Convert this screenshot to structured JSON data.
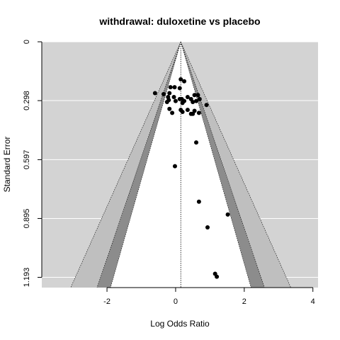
{
  "chart_data": {
    "type": "scatter",
    "title": "withdrawal: duloxetine vs placebo",
    "xlabel": "Log Odds Ratio",
    "ylabel": "Standard Error",
    "xlim": [
      -3.9,
      4.15
    ],
    "ylim": [
      0,
      1.245
    ],
    "y_reversed": true,
    "x_ticks": [
      -2,
      0,
      2,
      4
    ],
    "x_tick_labels": [
      "-2",
      "0",
      "2",
      "4"
    ],
    "y_ticks": [
      0,
      0.298,
      0.597,
      0.895,
      1.193
    ],
    "y_tick_labels": [
      "0",
      "0.298",
      "0.597",
      "0.895",
      "1.193"
    ],
    "grid": true,
    "pooled_estimate": 0.15,
    "funnel_z": [
      1.645,
      1.96,
      2.576
    ],
    "colors": {
      "panel_background": "#d3d3d3",
      "grid": "#ffffff",
      "region_outer": "#bfbfbf",
      "region_middle": "#8c8c8c",
      "region_inner": "#ffffff",
      "points": "#000000"
    },
    "points": [
      {
        "x": 0.15,
        "y": 0.19
      },
      {
        "x": 0.25,
        "y": 0.2
      },
      {
        "x": -0.15,
        "y": 0.23
      },
      {
        "x": -0.03,
        "y": 0.23
      },
      {
        "x": 0.12,
        "y": 0.235
      },
      {
        "x": -0.6,
        "y": 0.26
      },
      {
        "x": -0.35,
        "y": 0.265
      },
      {
        "x": -0.18,
        "y": 0.26
      },
      {
        "x": 0.55,
        "y": 0.27
      },
      {
        "x": 0.65,
        "y": 0.27
      },
      {
        "x": -0.22,
        "y": 0.28
      },
      {
        "x": -0.05,
        "y": 0.28
      },
      {
        "x": 0.35,
        "y": 0.28
      },
      {
        "x": 0.12,
        "y": 0.29
      },
      {
        "x": 0.18,
        "y": 0.29
      },
      {
        "x": 0.45,
        "y": 0.29
      },
      {
        "x": 0.7,
        "y": 0.29
      },
      {
        "x": -0.2,
        "y": 0.295
      },
      {
        "x": 0.0,
        "y": 0.3
      },
      {
        "x": 0.25,
        "y": 0.3
      },
      {
        "x": -0.25,
        "y": 0.305
      },
      {
        "x": 0.5,
        "y": 0.305
      },
      {
        "x": 0.6,
        "y": 0.3
      },
      {
        "x": 0.2,
        "y": 0.31
      },
      {
        "x": 0.9,
        "y": 0.32
      },
      {
        "x": -0.18,
        "y": 0.34
      },
      {
        "x": 0.15,
        "y": 0.345
      },
      {
        "x": 0.35,
        "y": 0.345
      },
      {
        "x": 0.2,
        "y": 0.355
      },
      {
        "x": 0.55,
        "y": 0.35
      },
      {
        "x": -0.1,
        "y": 0.36
      },
      {
        "x": 0.45,
        "y": 0.365
      },
      {
        "x": 0.5,
        "y": 0.365
      },
      {
        "x": 0.68,
        "y": 0.36
      },
      {
        "x": 0.6,
        "y": 0.51
      },
      {
        "x": -0.02,
        "y": 0.63
      },
      {
        "x": 0.68,
        "y": 0.81
      },
      {
        "x": 1.52,
        "y": 0.875
      },
      {
        "x": 0.93,
        "y": 0.94
      },
      {
        "x": 1.15,
        "y": 1.175
      },
      {
        "x": 1.2,
        "y": 1.19
      }
    ]
  }
}
